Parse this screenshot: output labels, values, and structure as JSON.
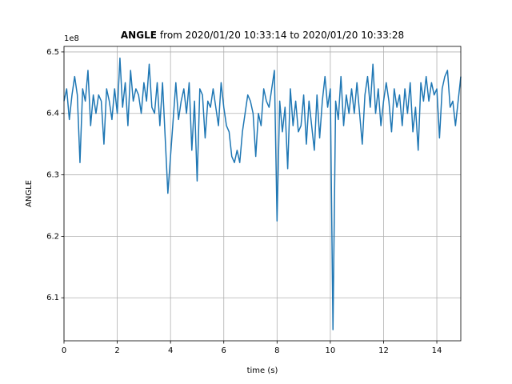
{
  "chart_data": {
    "type": "line",
    "title": {
      "bold": "ANGLE",
      "text": "from 2020/01/20 10:33:14 to 2020/01/20 10:33:28"
    },
    "x_label": "time (s)",
    "y_label": "ANGLE",
    "y_offset_label": "1e8",
    "color": "#1f77b4",
    "grid": true,
    "xlim": [
      0,
      14.9
    ],
    "ylim": [
      6.03,
      6.509
    ],
    "xticks": [
      0,
      2,
      4,
      6,
      8,
      10,
      12,
      14
    ],
    "yticks": [
      6.1,
      6.2,
      6.3,
      6.4,
      6.5
    ],
    "x": [
      0.0,
      0.1,
      0.2,
      0.3,
      0.4,
      0.5,
      0.6,
      0.7,
      0.8,
      0.9,
      1.0,
      1.1,
      1.2,
      1.3,
      1.4,
      1.5,
      1.6,
      1.7,
      1.8,
      1.9,
      2.0,
      2.1,
      2.2,
      2.3,
      2.4,
      2.5,
      2.6,
      2.7,
      2.8,
      2.9,
      3.0,
      3.1,
      3.2,
      3.3,
      3.4,
      3.5,
      3.6,
      3.7,
      3.8,
      3.9,
      4.0,
      4.1,
      4.2,
      4.3,
      4.4,
      4.5,
      4.6,
      4.7,
      4.8,
      4.9,
      5.0,
      5.1,
      5.2,
      5.3,
      5.4,
      5.5,
      5.6,
      5.7,
      5.8,
      5.9,
      6.0,
      6.1,
      6.2,
      6.3,
      6.4,
      6.5,
      6.6,
      6.7,
      6.8,
      6.9,
      7.0,
      7.1,
      7.2,
      7.3,
      7.4,
      7.5,
      7.6,
      7.7,
      7.8,
      7.9,
      8.0,
      8.1,
      8.2,
      8.3,
      8.4,
      8.5,
      8.6,
      8.7,
      8.8,
      8.9,
      9.0,
      9.1,
      9.2,
      9.3,
      9.4,
      9.5,
      9.6,
      9.7,
      9.8,
      9.9,
      10.0,
      10.1,
      10.2,
      10.3,
      10.4,
      10.5,
      10.6,
      10.7,
      10.8,
      10.9,
      11.0,
      11.1,
      11.2,
      11.3,
      11.4,
      11.5,
      11.6,
      11.7,
      11.8,
      11.9,
      12.0,
      12.1,
      12.2,
      12.3,
      12.4,
      12.5,
      12.6,
      12.7,
      12.8,
      12.9,
      13.0,
      13.1,
      13.2,
      13.3,
      13.4,
      13.5,
      13.6,
      13.7,
      13.8,
      13.9,
      14.0,
      14.1,
      14.2,
      14.3,
      14.4,
      14.5,
      14.6,
      14.7,
      14.8,
      14.9
    ],
    "values": [
      6.42,
      6.44,
      6.39,
      6.43,
      6.46,
      6.43,
      6.32,
      6.44,
      6.42,
      6.47,
      6.38,
      6.43,
      6.4,
      6.43,
      6.42,
      6.35,
      6.44,
      6.42,
      6.39,
      6.44,
      6.4,
      6.49,
      6.41,
      6.45,
      6.38,
      6.47,
      6.42,
      6.44,
      6.43,
      6.4,
      6.45,
      6.42,
      6.48,
      6.41,
      6.4,
      6.45,
      6.38,
      6.45,
      6.36,
      6.27,
      6.33,
      6.39,
      6.45,
      6.39,
      6.42,
      6.44,
      6.4,
      6.45,
      6.34,
      6.42,
      6.29,
      6.44,
      6.43,
      6.36,
      6.42,
      6.41,
      6.44,
      6.41,
      6.38,
      6.45,
      6.41,
      6.38,
      6.37,
      6.33,
      6.32,
      6.34,
      6.32,
      6.37,
      6.4,
      6.43,
      6.42,
      6.4,
      6.33,
      6.4,
      6.38,
      6.44,
      6.42,
      6.41,
      6.44,
      6.47,
      6.225,
      6.42,
      6.37,
      6.41,
      6.31,
      6.44,
      6.38,
      6.42,
      6.37,
      6.38,
      6.43,
      6.35,
      6.42,
      6.38,
      6.34,
      6.43,
      6.36,
      6.42,
      6.46,
      6.41,
      6.44,
      6.048,
      6.42,
      6.39,
      6.46,
      6.38,
      6.43,
      6.4,
      6.44,
      6.4,
      6.45,
      6.4,
      6.35,
      6.43,
      6.46,
      6.41,
      6.48,
      6.4,
      6.44,
      6.38,
      6.42,
      6.45,
      6.42,
      6.37,
      6.44,
      6.41,
      6.43,
      6.38,
      6.44,
      6.4,
      6.45,
      6.37,
      6.41,
      6.34,
      6.45,
      6.42,
      6.46,
      6.42,
      6.45,
      6.43,
      6.44,
      6.36,
      6.44,
      6.46,
      6.47,
      6.41,
      6.42,
      6.38,
      6.42,
      6.46
    ]
  }
}
